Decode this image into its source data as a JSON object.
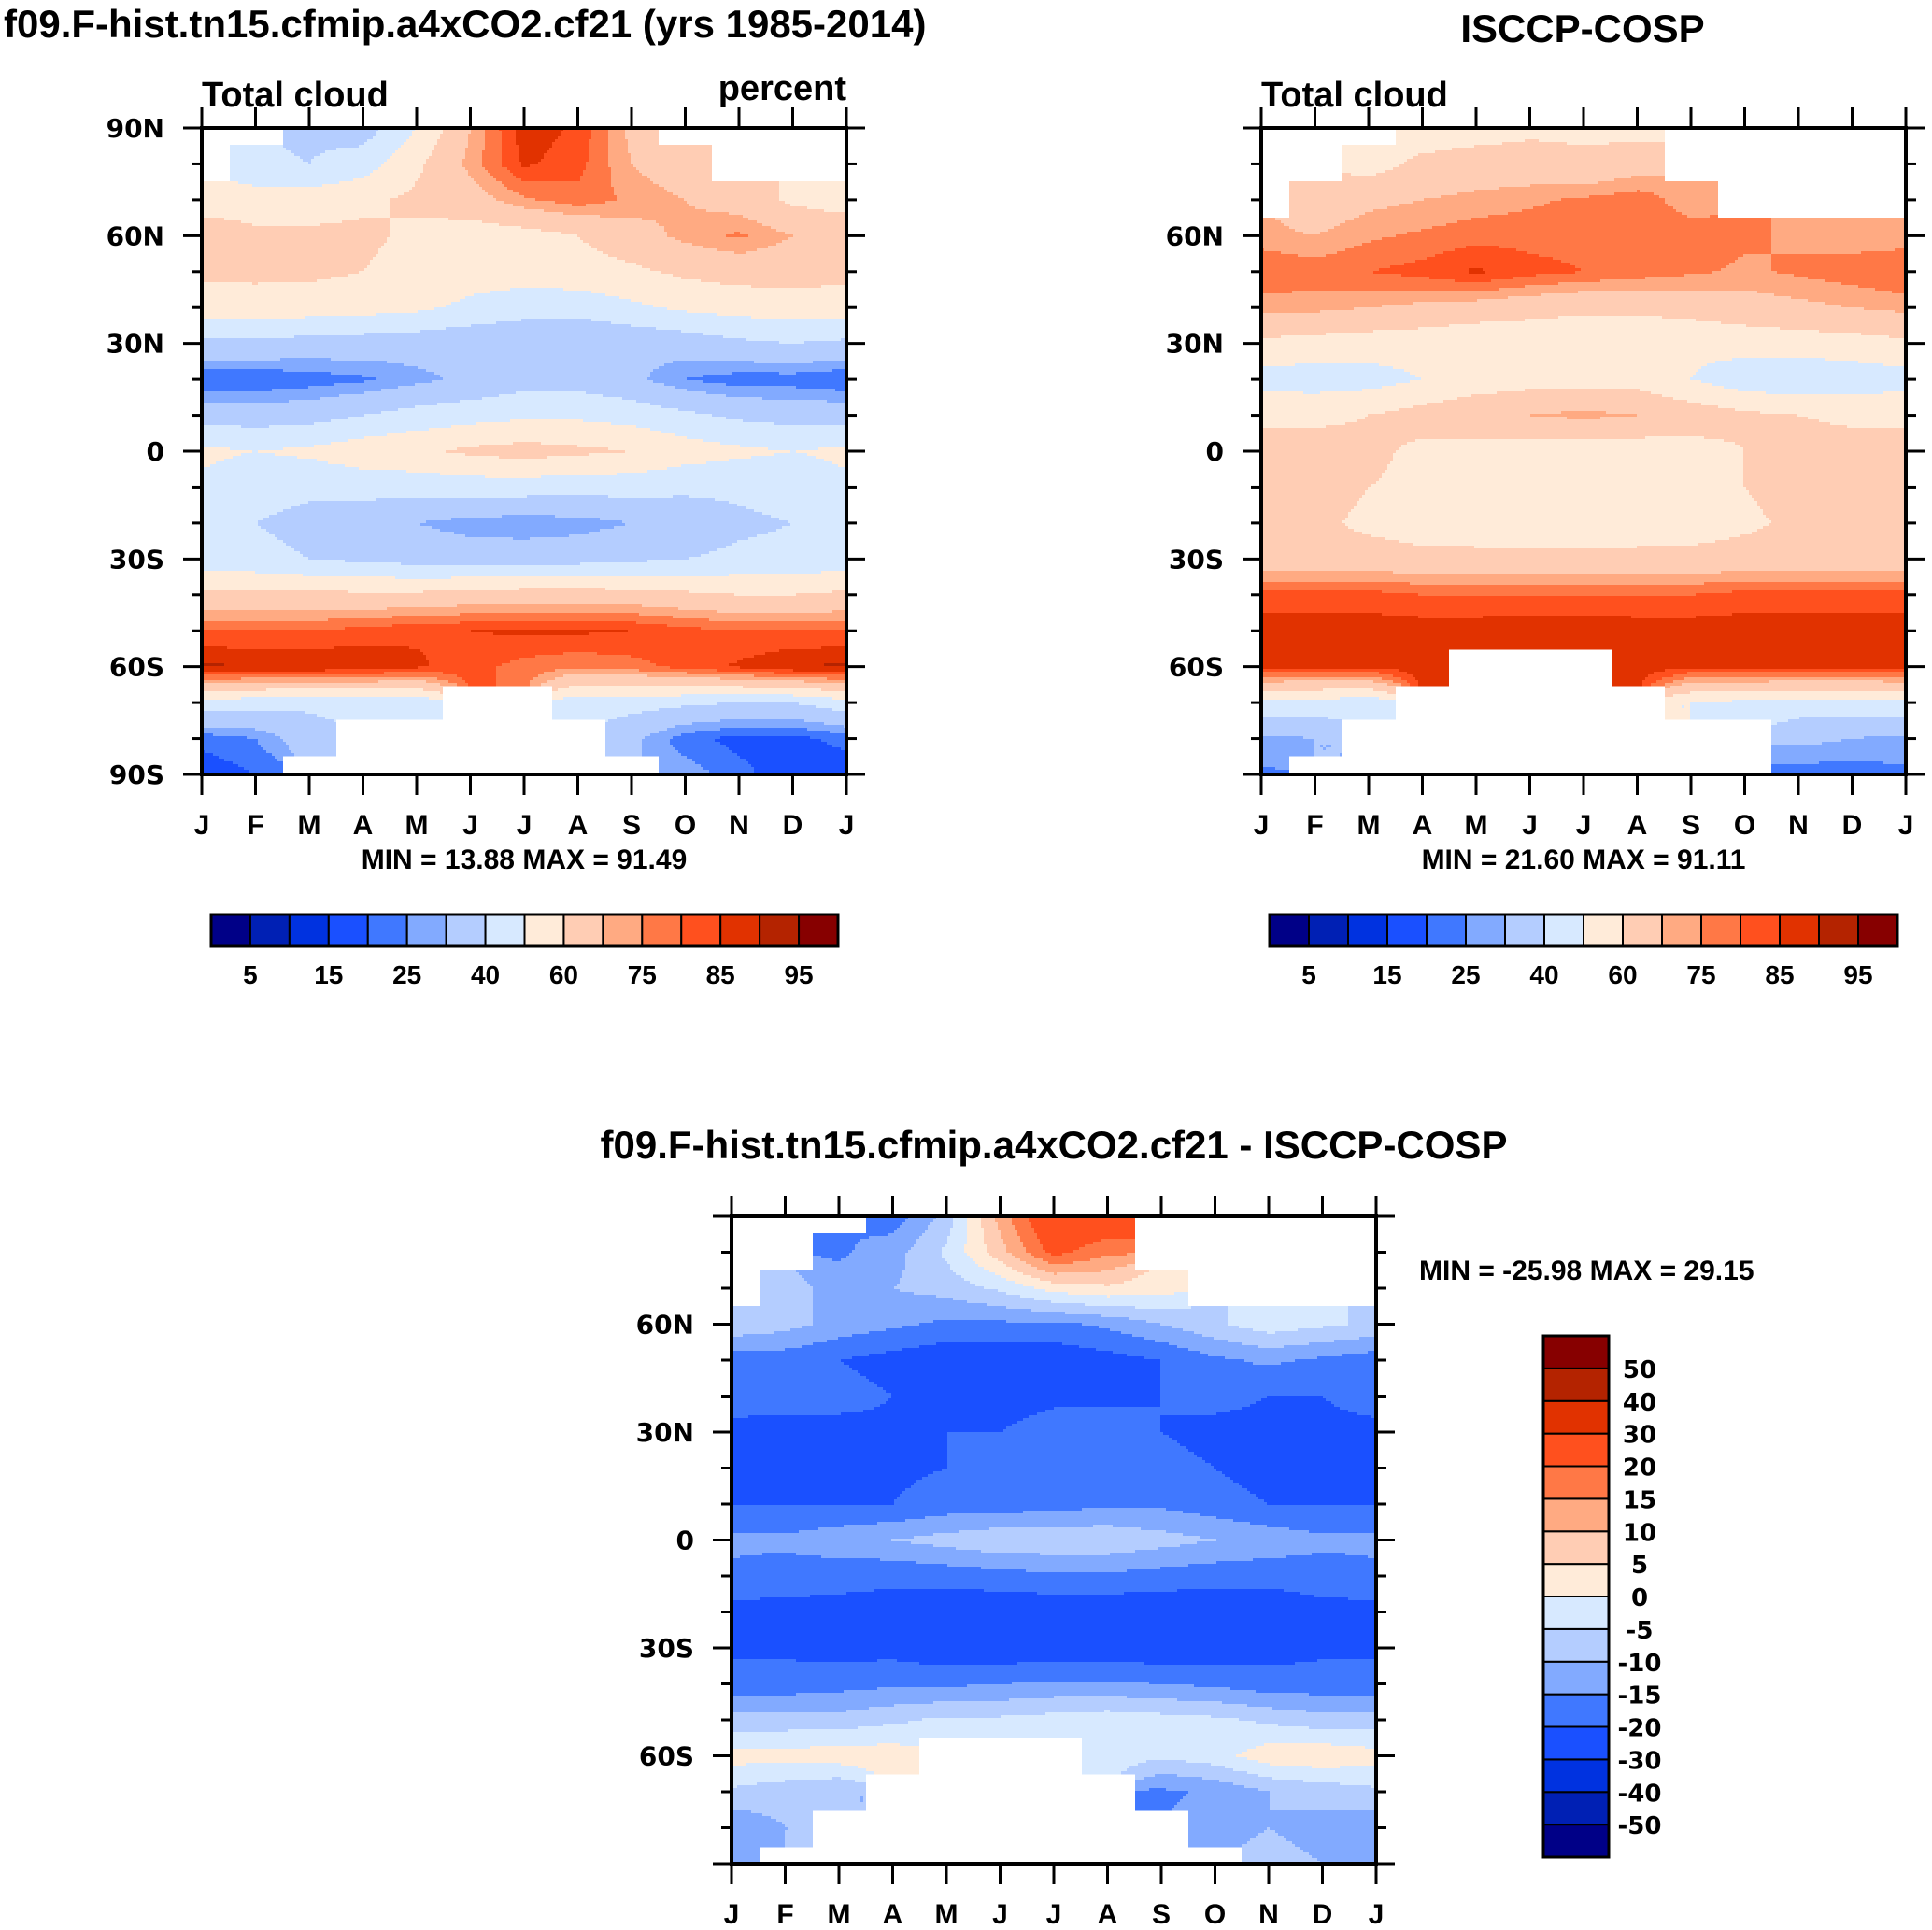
{
  "figure": {
    "left_title": "f09.F-hist.tn15.cfmip.a4xCO2.cf21 (yrs 1985-2014)",
    "right_title": "ISCCP-COSP",
    "diff_title": "f09.F-hist.tn15.cfmip.a4xCO2.cf21 - ISCCP-COSP"
  },
  "chart_data": [
    {
      "id": "model",
      "type": "heatmap",
      "plot_kind": "filled-contour",
      "title": "f09.F-hist.tn15.cfmip.a4xCO2.cf21 (yrs 1985-2014)",
      "left_string": "Total cloud",
      "right_string": "percent",
      "xlabel": "",
      "ylabel": "",
      "x_tick_labels": [
        "J",
        "F",
        "M",
        "A",
        "M",
        "J",
        "J",
        "A",
        "S",
        "O",
        "N",
        "D",
        "J"
      ],
      "y_tick_labels": [
        "90N",
        "60N",
        "30N",
        "0",
        "30S",
        "60S",
        "90S"
      ],
      "y_tick_values": [
        90,
        60,
        30,
        0,
        -30,
        -60,
        -90
      ],
      "xlim": [
        0,
        12
      ],
      "ylim": [
        -90,
        90
      ],
      "stats": "MIN =  13.88 MAX =  91.49",
      "min": 13.88,
      "max": 91.49,
      "colorbar": "cloud",
      "lat": [
        90,
        80,
        70,
        60,
        50,
        40,
        30,
        20,
        10,
        0,
        -10,
        -20,
        -30,
        -40,
        -50,
        -60,
        -70,
        -80,
        -90
      ],
      "values": [
        [
          null,
          null,
          38,
          35,
          50,
          70,
          88,
          84,
          68,
          null,
          null,
          null,
          null
        ],
        [
          null,
          42,
          40,
          45,
          58,
          72,
          86,
          82,
          70,
          64,
          null,
          null,
          null
        ],
        [
          55,
          55,
          55,
          58,
          62,
          66,
          74,
          78,
          74,
          70,
          66,
          58,
          55
        ],
        [
          66,
          62,
          62,
          62,
          58,
          55,
          56,
          60,
          66,
          72,
          76,
          70,
          68
        ],
        [
          62,
          62,
          62,
          60,
          56,
          54,
          54,
          56,
          58,
          62,
          64,
          64,
          63
        ],
        [
          55,
          56,
          55,
          54,
          52,
          48,
          45,
          44,
          48,
          52,
          54,
          55,
          55
        ],
        [
          38,
          38,
          36,
          35,
          34,
          32,
          30,
          30,
          32,
          34,
          38,
          40,
          38
        ],
        [
          20,
          20,
          22,
          24,
          28,
          32,
          36,
          36,
          32,
          25,
          22,
          22,
          20
        ],
        [
          36,
          35,
          36,
          40,
          44,
          46,
          48,
          48,
          46,
          42,
          38,
          36,
          36
        ],
        [
          52,
          50,
          52,
          56,
          58,
          62,
          64,
          62,
          60,
          55,
          52,
          50,
          52
        ],
        [
          48,
          44,
          42,
          44,
          44,
          45,
          45,
          44,
          44,
          42,
          42,
          44,
          48
        ],
        [
          42,
          40,
          37,
          33,
          30,
          27,
          26,
          27,
          30,
          34,
          38,
          40,
          42
        ],
        [
          44,
          43,
          40,
          38,
          36,
          35,
          35,
          36,
          38,
          40,
          42,
          43,
          44
        ],
        [
          62,
          62,
          62,
          62,
          62,
          64,
          65,
          65,
          64,
          62,
          60,
          60,
          62
        ],
        [
          80,
          80,
          80,
          82,
          84,
          85,
          86,
          86,
          85,
          82,
          80,
          80,
          80
        ],
        [
          91,
          90,
          90,
          89,
          86,
          82,
          78,
          76,
          78,
          82,
          86,
          90,
          91
        ],
        [
          46,
          44,
          42,
          44,
          44,
          null,
          null,
          45,
          44,
          42,
          40,
          40,
          46
        ],
        [
          22,
          25,
          35,
          null,
          null,
          null,
          null,
          null,
          32,
          22,
          18,
          18,
          22
        ],
        [
          16,
          20,
          null,
          null,
          null,
          null,
          null,
          null,
          null,
          28,
          22,
          16,
          16
        ]
      ]
    },
    {
      "id": "obs",
      "type": "heatmap",
      "plot_kind": "filled-contour",
      "title": "ISCCP-COSP",
      "left_string": "Total cloud",
      "right_string": "",
      "xlabel": "",
      "ylabel": "",
      "x_tick_labels": [
        "J",
        "F",
        "M",
        "A",
        "M",
        "J",
        "J",
        "A",
        "S",
        "O",
        "N",
        "D",
        "J"
      ],
      "y_tick_labels": [
        "60N",
        "30N",
        "0",
        "30S",
        "60S"
      ],
      "y_tick_values": [
        60,
        30,
        0,
        -30,
        -60
      ],
      "xlim": [
        0,
        12
      ],
      "ylim": [
        -90,
        90
      ],
      "stats": "MIN =  21.60 MAX =  91.11",
      "min": 21.6,
      "max": 91.11,
      "colorbar": "cloud",
      "lat": [
        90,
        80,
        70,
        60,
        50,
        40,
        30,
        20,
        10,
        0,
        -10,
        -20,
        -30,
        -40,
        -50,
        -60,
        -70,
        -80,
        -90
      ],
      "values": [
        [
          null,
          null,
          null,
          55,
          56,
          58,
          58,
          56,
          null,
          null,
          null,
          null,
          null
        ],
        [
          null,
          null,
          56,
          62,
          64,
          64,
          62,
          66,
          null,
          null,
          null,
          null,
          null
        ],
        [
          null,
          64,
          68,
          70,
          72,
          74,
          76,
          78,
          72,
          null,
          null,
          null,
          null
        ],
        [
          72,
          70,
          74,
          76,
          78,
          78,
          78,
          78,
          78,
          76,
          74,
          72,
          72
        ],
        [
          80,
          78,
          80,
          82,
          86,
          82,
          80,
          78,
          76,
          74,
          76,
          78,
          80
        ],
        [
          72,
          72,
          70,
          68,
          66,
          64,
          62,
          62,
          64,
          66,
          68,
          70,
          72
        ],
        [
          58,
          56,
          55,
          54,
          52,
          52,
          52,
          52,
          52,
          54,
          55,
          56,
          58
        ],
        [
          46,
          45,
          46,
          50,
          54,
          56,
          56,
          56,
          50,
          44,
          42,
          44,
          46
        ],
        [
          58,
          58,
          60,
          64,
          68,
          70,
          72,
          70,
          66,
          62,
          60,
          58,
          58
        ],
        [
          64,
          64,
          62,
          58,
          56,
          54,
          54,
          54,
          56,
          60,
          64,
          64,
          64
        ],
        [
          66,
          64,
          60,
          58,
          55,
          54,
          54,
          54,
          56,
          60,
          64,
          66,
          66
        ],
        [
          64,
          62,
          58,
          55,
          54,
          52,
          52,
          54,
          55,
          58,
          62,
          64,
          64
        ],
        [
          64,
          64,
          64,
          63,
          63,
          63,
          63,
          63,
          63,
          64,
          64,
          64,
          64
        ],
        [
          82,
          82,
          82,
          80,
          80,
          80,
          80,
          80,
          80,
          82,
          82,
          82,
          82
        ],
        [
          88,
          88,
          88,
          88,
          88,
          89,
          89,
          88,
          88,
          88,
          88,
          88,
          88
        ],
        [
          86,
          86,
          86,
          88,
          null,
          null,
          null,
          88,
          86,
          86,
          86,
          86,
          86
        ],
        [
          48,
          46,
          44,
          null,
          null,
          null,
          null,
          null,
          50,
          48,
          46,
          46,
          48
        ],
        [
          28,
          30,
          null,
          null,
          null,
          null,
          null,
          null,
          null,
          null,
          32,
          30,
          28
        ],
        [
          24,
          null,
          null,
          null,
          null,
          null,
          null,
          null,
          null,
          null,
          22,
          22,
          24
        ]
      ]
    },
    {
      "id": "diff",
      "type": "heatmap",
      "plot_kind": "filled-contour",
      "title": "f09.F-hist.tn15.cfmip.a4xCO2.cf21 - ISCCP-COSP",
      "left_string": "",
      "right_string": "",
      "xlabel": "",
      "ylabel": "",
      "x_tick_labels": [
        "J",
        "F",
        "M",
        "A",
        "M",
        "J",
        "J",
        "A",
        "S",
        "O",
        "N",
        "D",
        "J"
      ],
      "y_tick_labels": [
        "60N",
        "30N",
        "0",
        "30S",
        "60S"
      ],
      "y_tick_values": [
        60,
        30,
        0,
        -30,
        -60
      ],
      "xlim": [
        0,
        12
      ],
      "ylim": [
        -90,
        90
      ],
      "stats": "MIN = -25.98 MAX =  29.15",
      "min": -25.98,
      "max": 29.15,
      "colorbar": "diff",
      "lat": [
        90,
        80,
        70,
        60,
        50,
        40,
        30,
        20,
        10,
        0,
        -10,
        -20,
        -30,
        -40,
        -50,
        -60,
        -70,
        -80,
        -90
      ],
      "values": [
        [
          null,
          null,
          null,
          -18,
          -8,
          12,
          28,
          26,
          null,
          null,
          null,
          null,
          null
        ],
        [
          null,
          null,
          -16,
          -12,
          -4,
          8,
          22,
          16,
          null,
          null,
          null,
          null,
          null
        ],
        [
          null,
          -8,
          -12,
          -10,
          -8,
          -4,
          2,
          4,
          2,
          null,
          null,
          null,
          null
        ],
        [
          -6,
          -8,
          -12,
          -14,
          -16,
          -16,
          -16,
          -14,
          -10,
          -6,
          -2,
          -4,
          -6
        ],
        [
          -18,
          -18,
          -20,
          -22,
          -24,
          -24,
          -24,
          -22,
          -20,
          -16,
          -14,
          -16,
          -18
        ],
        [
          -17,
          -18,
          -18,
          -20,
          -22,
          -22,
          -21,
          -21,
          -20,
          -18,
          -20,
          -20,
          -17
        ],
        [
          -22,
          -22,
          -22,
          -21,
          -20,
          -20,
          -18,
          -18,
          -20,
          -22,
          -22,
          -22,
          -22
        ],
        [
          -24,
          -24,
          -24,
          -21,
          -20,
          -18,
          -18,
          -18,
          -18,
          -20,
          -22,
          -24,
          -24
        ],
        [
          -20,
          -20,
          -20,
          -20,
          -18,
          -18,
          -17,
          -16,
          -16,
          -18,
          -20,
          -20,
          -20
        ],
        [
          -14,
          -14,
          -12,
          -10,
          -8,
          -6,
          -6,
          -6,
          -8,
          -10,
          -12,
          -14,
          -14
        ],
        [
          -16,
          -17,
          -18,
          -19,
          -18,
          -17,
          -16,
          -16,
          -17,
          -18,
          -18,
          -17,
          -16
        ],
        [
          -22,
          -22,
          -22,
          -22,
          -24,
          -24,
          -24,
          -24,
          -24,
          -24,
          -24,
          -22,
          -22
        ],
        [
          -21,
          -21,
          -22,
          -22,
          -24,
          -24,
          -24,
          -24,
          -24,
          -23,
          -22,
          -21,
          -21
        ],
        [
          -18,
          -18,
          -17,
          -16,
          -16,
          -15,
          -14,
          -14,
          -15,
          -16,
          -18,
          -18,
          -18
        ],
        [
          -8,
          -8,
          -8,
          -6,
          -4,
          -4,
          -3,
          -2,
          -3,
          -4,
          -6,
          -8,
          -8
        ],
        [
          2,
          2,
          3,
          3,
          null,
          null,
          null,
          -2,
          -4,
          -2,
          3,
          4,
          2
        ],
        [
          -6,
          -8,
          -10,
          null,
          null,
          null,
          null,
          null,
          -16,
          -14,
          -10,
          -8,
          -6
        ],
        [
          -14,
          -10,
          null,
          null,
          null,
          null,
          null,
          null,
          null,
          -12,
          -10,
          -12,
          -14
        ],
        [
          -10,
          null,
          null,
          null,
          null,
          null,
          null,
          null,
          null,
          null,
          -8,
          -10,
          -10
        ]
      ]
    }
  ],
  "colorbars": {
    "cloud": {
      "orientation": "horizontal",
      "levels": [
        5,
        10,
        15,
        20,
        25,
        30,
        40,
        50,
        60,
        70,
        75,
        80,
        85,
        90,
        95
      ],
      "labels": [
        "5",
        "15",
        "25",
        "40",
        "60",
        "75",
        "85",
        "95"
      ],
      "colors": [
        "#000087",
        "#0020b4",
        "#0032e0",
        "#1a50ff",
        "#4078ff",
        "#82aaff",
        "#b4cdff",
        "#d7e9ff",
        "#ffebd9",
        "#ffcdb4",
        "#ffaa82",
        "#ff7846",
        "#ff501e",
        "#e13200",
        "#b42300",
        "#870000"
      ]
    },
    "diff": {
      "orientation": "vertical",
      "levels": [
        -50,
        -40,
        -30,
        -20,
        -15,
        -10,
        -5,
        0,
        5,
        10,
        15,
        20,
        30,
        40,
        50
      ],
      "labels": [
        "-50",
        "-40",
        "-30",
        "-20",
        "-15",
        "-10",
        "-5",
        "0",
        "5",
        "10",
        "15",
        "20",
        "30",
        "40",
        "50"
      ],
      "colors": [
        "#000087",
        "#0020b4",
        "#0032e0",
        "#1a50ff",
        "#4078ff",
        "#82aaff",
        "#b4cdff",
        "#d7e9ff",
        "#ffebd9",
        "#ffcdb4",
        "#ffaa82",
        "#ff7846",
        "#ff501e",
        "#e13200",
        "#b42300",
        "#870000"
      ]
    }
  }
}
